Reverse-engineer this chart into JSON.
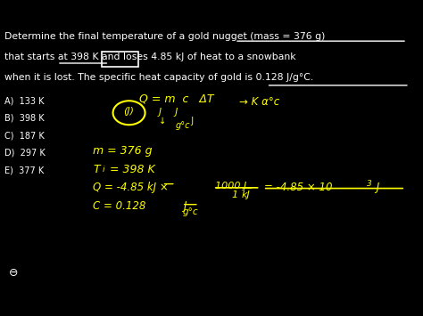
{
  "bg_color": "#000000",
  "text_color": "#ffffff",
  "yellow_color": "#ffff00",
  "question_text": [
    "Determine the final temperature of a gold nugget (mass = 376 g)",
    "that starts at 398 K and loses 4.85 kJ of heat to a snowbank",
    "when it is lost. The specific heat capacity of gold is 0.128 J/g°C."
  ],
  "options": [
    "A)  133 K",
    "B)  398 K",
    "C)  187 K",
    "D)  297 K",
    "E)  377 K"
  ],
  "figsize": [
    4.74,
    3.55
  ],
  "dpi": 100
}
